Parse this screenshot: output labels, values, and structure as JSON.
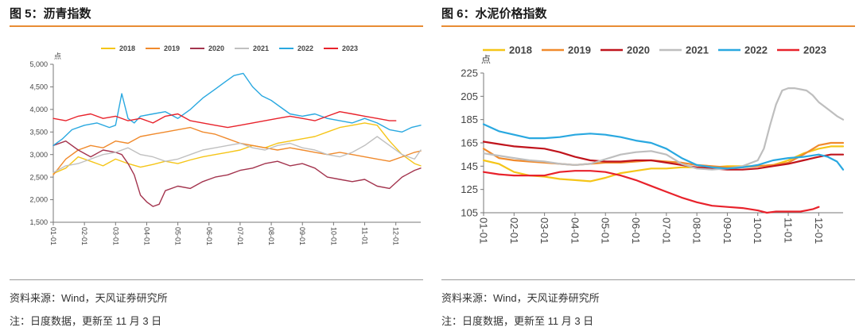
{
  "figures": [
    {
      "title": "图 5：沥青指数",
      "source": "资料来源：Wind，天风证券研究所",
      "note": "注：日度数据，更新至 11 月 3 日",
      "chart_data": {
        "type": "line",
        "title": "图 5：沥青指数",
        "ylabel": "点",
        "ylim": [
          1500,
          5000
        ],
        "yticks": [
          1500,
          2000,
          2500,
          3000,
          3500,
          4000,
          4500,
          5000
        ],
        "ytick_labels": [
          "1,500",
          "2,000",
          "2,500",
          "3,000",
          "3,500",
          "4,000",
          "4,500",
          "5,000"
        ],
        "xlim": [
          0,
          11.8
        ],
        "xtick_labels": [
          "01-01",
          "02-01",
          "03-01",
          "04-01",
          "05-01",
          "06-01",
          "07-01",
          "08-01",
          "09-01",
          "10-01",
          "11-01",
          "12-01"
        ],
        "grid": false,
        "legend": "top",
        "series": [
          {
            "name": "2018",
            "color": "#F5C518",
            "x": [
              0,
              0.4,
              0.8,
              1.2,
              1.6,
              2.0,
              2.4,
              2.8,
              3.2,
              3.6,
              4.0,
              4.4,
              4.8,
              5.2,
              5.6,
              6.0,
              6.4,
              6.8,
              7.2,
              7.6,
              8.0,
              8.4,
              8.8,
              9.2,
              9.6,
              10.0,
              10.4,
              10.8,
              11.2,
              11.6,
              11.8
            ],
            "y": [
              2580,
              2700,
              2950,
              2850,
              2750,
              2900,
              2800,
              2720,
              2780,
              2850,
              2800,
              2880,
              2950,
              3000,
              3050,
              3100,
              3200,
              3150,
              3250,
              3300,
              3350,
              3400,
              3500,
              3600,
              3650,
              3700,
              3650,
              3300,
              3000,
              2800,
              2750
            ]
          },
          {
            "name": "2019",
            "color": "#F08A2C",
            "x": [
              0,
              0.4,
              0.8,
              1.2,
              1.6,
              2.0,
              2.4,
              2.8,
              3.2,
              3.6,
              4.0,
              4.4,
              4.8,
              5.2,
              5.6,
              6.0,
              6.4,
              6.8,
              7.2,
              7.6,
              8.0,
              8.4,
              8.8,
              9.2,
              9.6,
              10.0,
              10.4,
              10.8,
              11.2,
              11.6,
              11.8
            ],
            "y": [
              2550,
              2900,
              3100,
              3200,
              3150,
              3300,
              3250,
              3400,
              3450,
              3500,
              3550,
              3600,
              3500,
              3450,
              3350,
              3250,
              3200,
              3150,
              3100,
              3150,
              3100,
              3050,
              3000,
              3050,
              3000,
              2950,
              2900,
              2850,
              2950,
              3050,
              3080
            ]
          },
          {
            "name": "2020",
            "color": "#A3344E",
            "x": [
              0,
              0.4,
              0.8,
              1.2,
              1.6,
              2.0,
              2.2,
              2.4,
              2.6,
              2.8,
              3.0,
              3.2,
              3.4,
              3.6,
              4.0,
              4.4,
              4.8,
              5.2,
              5.6,
              6.0,
              6.4,
              6.8,
              7.2,
              7.6,
              8.0,
              8.4,
              8.8,
              9.2,
              9.6,
              10.0,
              10.4,
              10.8,
              11.2,
              11.6,
              11.8
            ],
            "y": [
              3200,
              3300,
              3100,
              2950,
              3100,
              3050,
              3000,
              2800,
              2550,
              2100,
              1950,
              1850,
              1900,
              2200,
              2300,
              2250,
              2400,
              2500,
              2550,
              2650,
              2700,
              2800,
              2850,
              2750,
              2800,
              2700,
              2500,
              2450,
              2400,
              2450,
              2300,
              2250,
              2500,
              2650,
              2700
            ]
          },
          {
            "name": "2021",
            "color": "#C0C0C0",
            "x": [
              0,
              0.4,
              0.8,
              1.2,
              1.6,
              2.0,
              2.4,
              2.8,
              3.2,
              3.6,
              4.0,
              4.4,
              4.8,
              5.2,
              5.6,
              6.0,
              6.4,
              6.8,
              7.2,
              7.6,
              8.0,
              8.4,
              8.8,
              9.2,
              9.6,
              10.0,
              10.4,
              10.8,
              11.2,
              11.6,
              11.8
            ],
            "y": [
              2600,
              2750,
              2800,
              2900,
              3000,
              3050,
              3150,
              3000,
              2950,
              2850,
              2900,
              3000,
              3100,
              3150,
              3200,
              3250,
              3150,
              3100,
              3200,
              3250,
              3150,
              3100,
              3000,
              2950,
              3050,
              3200,
              3400,
              3200,
              3000,
              2900,
              3100
            ]
          },
          {
            "name": "2022",
            "color": "#29A8E0",
            "x": [
              0,
              0.3,
              0.6,
              1.0,
              1.4,
              1.8,
              2.0,
              2.2,
              2.4,
              2.6,
              2.8,
              3.2,
              3.6,
              4.0,
              4.4,
              4.8,
              5.2,
              5.5,
              5.8,
              6.1,
              6.4,
              6.7,
              7.0,
              7.3,
              7.6,
              8.0,
              8.4,
              8.8,
              9.2,
              9.6,
              10.0,
              10.4,
              10.8,
              11.2,
              11.5,
              11.8
            ],
            "y": [
              3200,
              3350,
              3550,
              3650,
              3700,
              3600,
              3650,
              4350,
              3800,
              3700,
              3850,
              3900,
              3950,
              3800,
              4000,
              4250,
              4450,
              4600,
              4750,
              4800,
              4500,
              4300,
              4200,
              4050,
              3900,
              3850,
              3900,
              3800,
              3750,
              3700,
              3800,
              3700,
              3550,
              3500,
              3600,
              3650
            ]
          },
          {
            "name": "2023",
            "color": "#E8222B",
            "x": [
              0,
              0.4,
              0.8,
              1.2,
              1.6,
              2.0,
              2.4,
              2.8,
              3.2,
              3.6,
              4.0,
              4.4,
              4.8,
              5.2,
              5.6,
              6.0,
              6.4,
              6.8,
              7.2,
              7.6,
              8.0,
              8.4,
              8.8,
              9.2,
              9.6,
              10.0,
              10.4,
              10.8,
              11.0
            ],
            "y": [
              3800,
              3750,
              3850,
              3900,
              3800,
              3850,
              3750,
              3800,
              3700,
              3850,
              3900,
              3750,
              3700,
              3650,
              3600,
              3650,
              3700,
              3750,
              3800,
              3850,
              3800,
              3750,
              3850,
              3950,
              3900,
              3850,
              3800,
              3750,
              3750
            ]
          }
        ]
      }
    },
    {
      "title": "图 6：水泥价格指数",
      "source": "资料来源：Wind，天风证券研究所",
      "note": "注：日度数据，更新至 11 月 3 日",
      "chart_data": {
        "type": "line",
        "title": "图 6：水泥价格指数",
        "ylabel": "点",
        "ylim": [
          105,
          225
        ],
        "yticks": [
          105,
          125,
          145,
          165,
          185,
          205,
          225
        ],
        "ytick_labels": [
          "105",
          "125",
          "145",
          "165",
          "185",
          "205",
          "225"
        ],
        "xlim": [
          0,
          11.8
        ],
        "xtick_labels": [
          "01-01",
          "02-01",
          "03-01",
          "04-01",
          "05-01",
          "06-01",
          "07-01",
          "08-01",
          "09-01",
          "10-01",
          "11-01",
          "12-01"
        ],
        "grid": false,
        "legend": "top",
        "series": [
          {
            "name": "2018",
            "color": "#F5C518",
            "x": [
              0,
              0.5,
              1.0,
              1.5,
              2.0,
              2.5,
              3.0,
              3.5,
              4.0,
              4.5,
              5.0,
              5.5,
              6.0,
              6.5,
              7.0,
              7.5,
              8.0,
              8.5,
              9.0,
              9.5,
              10.0,
              10.5,
              11.0,
              11.4,
              11.8
            ],
            "y": [
              150,
              147,
              140,
              137,
              136,
              134,
              133,
              132,
              135,
              139,
              141,
              143,
              143,
              144,
              144,
              144,
              145,
              145,
              145,
              146,
              150,
              156,
              160,
              162,
              162
            ]
          },
          {
            "name": "2019",
            "color": "#F08A2C",
            "x": [
              0,
              0.5,
              1.0,
              1.5,
              2.0,
              2.5,
              3.0,
              3.5,
              4.0,
              4.5,
              5.0,
              5.5,
              6.0,
              6.5,
              7.0,
              7.5,
              8.0,
              8.5,
              9.0,
              9.5,
              10.0,
              10.5,
              11.0,
              11.4,
              11.8
            ],
            "y": [
              160,
              152,
              150,
              149,
              148,
              147,
              146,
              147,
              148,
              148,
              149,
              150,
              149,
              148,
              146,
              145,
              144,
              144,
              145,
              146,
              148,
              155,
              163,
              165,
              165
            ]
          },
          {
            "name": "2020",
            "color": "#C0141C",
            "x": [
              0,
              0.5,
              1.0,
              1.5,
              2.0,
              2.5,
              3.0,
              3.5,
              4.0,
              4.5,
              5.0,
              5.5,
              6.0,
              6.5,
              7.0,
              7.5,
              8.0,
              8.5,
              9.0,
              9.5,
              10.0,
              10.5,
              11.0,
              11.4,
              11.8
            ],
            "y": [
              166,
              164,
              162,
              161,
              160,
              157,
              153,
              150,
              149,
              149,
              150,
              150,
              148,
              146,
              144,
              143,
              142,
              142,
              143,
              145,
              147,
              150,
              153,
              155,
              155
            ]
          },
          {
            "name": "2021",
            "color": "#BEBEBE",
            "x": [
              0,
              0.5,
              1.0,
              1.5,
              2.0,
              2.5,
              3.0,
              3.5,
              4.0,
              4.5,
              5.0,
              5.5,
              6.0,
              6.5,
              7.0,
              7.5,
              8.0,
              8.5,
              9.0,
              9.2,
              9.4,
              9.6,
              9.8,
              10.0,
              10.2,
              10.4,
              10.6,
              10.8,
              11.0,
              11.2,
              11.4,
              11.6,
              11.8
            ],
            "y": [
              156,
              154,
              152,
              150,
              149,
              147,
              146,
              147,
              151,
              155,
              157,
              158,
              155,
              147,
              143,
              142,
              143,
              145,
              150,
              160,
              180,
              198,
              210,
              212,
              212,
              211,
              210,
              206,
              200,
              196,
              192,
              188,
              185
            ]
          },
          {
            "name": "2022",
            "color": "#29A8E0",
            "x": [
              0,
              0.5,
              1.0,
              1.5,
              2.0,
              2.5,
              3.0,
              3.5,
              4.0,
              4.5,
              5.0,
              5.5,
              6.0,
              6.5,
              7.0,
              7.5,
              8.0,
              8.5,
              9.0,
              9.5,
              10.0,
              10.5,
              11.0,
              11.3,
              11.6,
              11.8
            ],
            "y": [
              181,
              175,
              172,
              169,
              169,
              170,
              172,
              173,
              172,
              170,
              167,
              165,
              160,
              152,
              146,
              144,
              143,
              144,
              146,
              150,
              152,
              153,
              155,
              153,
              149,
              142
            ]
          },
          {
            "name": "2023",
            "color": "#E8222B",
            "x": [
              0,
              0.5,
              1.0,
              1.5,
              2.0,
              2.5,
              3.0,
              3.5,
              4.0,
              4.5,
              5.0,
              5.5,
              6.0,
              6.5,
              7.0,
              7.5,
              8.0,
              8.5,
              9.0,
              9.3,
              9.6,
              10.0,
              10.4,
              10.8,
              11.0
            ],
            "y": [
              140,
              138,
              137,
              137,
              137,
              140,
              141,
              141,
              140,
              137,
              133,
              128,
              123,
              118,
              114,
              111,
              110,
              109,
              107,
              105,
              106,
              106,
              106,
              108,
              110
            ]
          }
        ]
      }
    }
  ]
}
